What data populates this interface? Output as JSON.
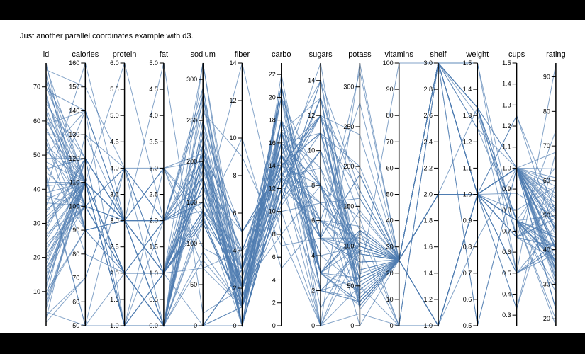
{
  "page": {
    "caption": "Just another parallel coordinates example with d3."
  },
  "colors": {
    "line": "#4f7cb0",
    "axis": "#000000",
    "background": "#ffffff",
    "letterbox": "#000000"
  },
  "chart_data": {
    "type": "parallel-coordinates",
    "title": "",
    "dimensions": [
      {
        "name": "id",
        "domain": [
          0,
          77
        ],
        "ticks": [
          10,
          20,
          30,
          40,
          50,
          60,
          70
        ]
      },
      {
        "name": "calories",
        "domain": [
          50,
          160
        ],
        "ticks": [
          50,
          60,
          70,
          80,
          90,
          100,
          110,
          120,
          130,
          140,
          150,
          160
        ]
      },
      {
        "name": "protein",
        "domain": [
          1,
          6
        ],
        "ticks": [
          1.0,
          1.5,
          2.0,
          2.5,
          3.0,
          3.5,
          4.0,
          4.5,
          5.0,
          5.5,
          6.0
        ]
      },
      {
        "name": "fat",
        "domain": [
          0,
          5
        ],
        "ticks": [
          0.0,
          0.5,
          1.0,
          1.5,
          2.0,
          2.5,
          3.0,
          3.5,
          4.0,
          4.5,
          5.0
        ]
      },
      {
        "name": "sodium",
        "domain": [
          0,
          320
        ],
        "ticks": [
          0,
          50,
          100,
          150,
          200,
          250,
          300
        ]
      },
      {
        "name": "fiber",
        "domain": [
          0,
          14
        ],
        "ticks": [
          0,
          2,
          4,
          6,
          8,
          10,
          12,
          14
        ]
      },
      {
        "name": "carbo",
        "domain": [
          0,
          23
        ],
        "ticks": [
          0,
          2,
          4,
          6,
          8,
          10,
          12,
          14,
          16,
          18,
          20,
          22
        ]
      },
      {
        "name": "sugars",
        "domain": [
          0,
          15
        ],
        "ticks": [
          0,
          2,
          4,
          6,
          8,
          10,
          12,
          14
        ]
      },
      {
        "name": "potass",
        "domain": [
          0,
          330
        ],
        "ticks": [
          0,
          50,
          100,
          150,
          200,
          250,
          300
        ]
      },
      {
        "name": "vitamins",
        "domain": [
          0,
          100
        ],
        "ticks": [
          0,
          10,
          20,
          30,
          40,
          50,
          60,
          70,
          80,
          90,
          100
        ]
      },
      {
        "name": "shelf",
        "domain": [
          1,
          3
        ],
        "ticks": [
          1.0,
          1.2,
          1.4,
          1.6,
          1.8,
          2.0,
          2.2,
          2.4,
          2.6,
          2.8,
          3.0
        ]
      },
      {
        "name": "weight",
        "domain": [
          0.5,
          1.5
        ],
        "ticks": [
          0.5,
          0.6,
          0.7,
          0.8,
          0.9,
          1.0,
          1.1,
          1.2,
          1.3,
          1.4,
          1.5
        ]
      },
      {
        "name": "cups",
        "domain": [
          0.25,
          1.5
        ],
        "ticks": [
          0.3,
          0.4,
          0.5,
          0.6,
          0.7,
          0.8,
          0.9,
          1.0,
          1.1,
          1.2,
          1.3,
          1.4,
          1.5
        ]
      },
      {
        "name": "rating",
        "domain": [
          18,
          94
        ],
        "ticks": [
          20,
          30,
          40,
          50,
          60,
          70,
          80,
          90
        ]
      }
    ],
    "records": [
      [
        1,
        70,
        4,
        1,
        130,
        10,
        5,
        6,
        280,
        25,
        3,
        1,
        0.33,
        68.4
      ],
      [
        2,
        120,
        3,
        5,
        15,
        2,
        8,
        8,
        135,
        0,
        3,
        1,
        1,
        34
      ],
      [
        3,
        70,
        4,
        1,
        260,
        9,
        7,
        5,
        320,
        25,
        3,
        1,
        0.33,
        59.4
      ],
      [
        4,
        50,
        4,
        0,
        140,
        14,
        8,
        0,
        330,
        25,
        3,
        1,
        0.5,
        93.7
      ],
      [
        5,
        110,
        2,
        2,
        200,
        1,
        14,
        8,
        0,
        25,
        3,
        1,
        0.75,
        34.4
      ],
      [
        6,
        110,
        2,
        2,
        180,
        1.5,
        10.5,
        10,
        70,
        25,
        1,
        1,
        0.75,
        29.5
      ],
      [
        7,
        110,
        2,
        0,
        125,
        1,
        11,
        14,
        30,
        25,
        2,
        1,
        1,
        33.2
      ],
      [
        8,
        130,
        3,
        2,
        210,
        2,
        18,
        8,
        100,
        25,
        3,
        1.33,
        0.75,
        37
      ],
      [
        9,
        90,
        2,
        1,
        200,
        4,
        15,
        6,
        125,
        25,
        1,
        1,
        0.67,
        49.1
      ],
      [
        10,
        90,
        3,
        0,
        210,
        5,
        13,
        5,
        190,
        25,
        3,
        1,
        0.67,
        53.3
      ],
      [
        11,
        120,
        1,
        2,
        220,
        0,
        12,
        12,
        35,
        25,
        2,
        1,
        0.75,
        18
      ],
      [
        12,
        110,
        6,
        2,
        290,
        2,
        17,
        1,
        105,
        25,
        1,
        1,
        1.25,
        50.8
      ],
      [
        13,
        120,
        1,
        3,
        210,
        0,
        13,
        9,
        45,
        25,
        2,
        1,
        0.75,
        19.8
      ],
      [
        14,
        110,
        3,
        2,
        140,
        2,
        13,
        7,
        105,
        25,
        3,
        1,
        1,
        40.4
      ],
      [
        15,
        110,
        1,
        1,
        180,
        0,
        12,
        13,
        55,
        25,
        2,
        1,
        1,
        22.7
      ],
      [
        16,
        110,
        2,
        0,
        280,
        0,
        22,
        3,
        25,
        25,
        1,
        1,
        1,
        41.4
      ],
      [
        17,
        100,
        2,
        0,
        290,
        1,
        21,
        2,
        35,
        25,
        1,
        1,
        1,
        45.9
      ],
      [
        18,
        110,
        1,
        0,
        90,
        1,
        13,
        12,
        20,
        25,
        2,
        1,
        1,
        31.4
      ],
      [
        19,
        110,
        1,
        1,
        180,
        0,
        12,
        13,
        65,
        25,
        2,
        1,
        1,
        29.9
      ],
      [
        20,
        110,
        3,
        3,
        140,
        4,
        10,
        7,
        160,
        25,
        3,
        1,
        0.5,
        40.4
      ],
      [
        21,
        100,
        3,
        0,
        80,
        1,
        21,
        2,
        60,
        25,
        3,
        1,
        0.75,
        64
      ],
      [
        22,
        110,
        2,
        0,
        220,
        1,
        21,
        3,
        30,
        25,
        3,
        1,
        1,
        46.9
      ],
      [
        23,
        100,
        2,
        1,
        140,
        2,
        11,
        10,
        120,
        25,
        3,
        1,
        0.75,
        36.2
      ],
      [
        24,
        100,
        2,
        0,
        190,
        1,
        18,
        5,
        80,
        25,
        3,
        1,
        0.75,
        44.3
      ],
      [
        25,
        110,
        1,
        1,
        125,
        1,
        11,
        13,
        30,
        25,
        2,
        1,
        1,
        32.2
      ],
      [
        26,
        110,
        1,
        0,
        200,
        1,
        14,
        11,
        25,
        25,
        1,
        1,
        1,
        31.1
      ],
      [
        27,
        100,
        3,
        0,
        0,
        3,
        14,
        7,
        100,
        25,
        2,
        1,
        0.8,
        58.3
      ],
      [
        28,
        120,
        3,
        0,
        240,
        5,
        14,
        12,
        190,
        25,
        3,
        1.33,
        0.67,
        40.9
      ],
      [
        29,
        120,
        3,
        1,
        170,
        5,
        14,
        11,
        200,
        25,
        3,
        1.33,
        0.67,
        41
      ],
      [
        30,
        110,
        3,
        0,
        250,
        3.5,
        14.5,
        3,
        145,
        25,
        3,
        1,
        0.67,
        49.1
      ],
      [
        31,
        110,
        2,
        1,
        180,
        0,
        17,
        5,
        35,
        25,
        1,
        1,
        1,
        45.8
      ],
      [
        32,
        110,
        2,
        1,
        170,
        1,
        17,
        6,
        60,
        100,
        3,
        1,
        1,
        51.6
      ],
      [
        33,
        120,
        3,
        2,
        160,
        1.5,
        14,
        11,
        80,
        25,
        3,
        1.33,
        0.5,
        42
      ],
      [
        34,
        110,
        1,
        1,
        180,
        0,
        12,
        13,
        55,
        25,
        2,
        1,
        1,
        22.7
      ],
      [
        35,
        140,
        3,
        2,
        150,
        2.5,
        20,
        8,
        90,
        25,
        3,
        1.3,
        0.75,
        40.5
      ],
      [
        36,
        100,
        2,
        0,
        220,
        2,
        15,
        6,
        90,
        25,
        3,
        1,
        1,
        50.3
      ],
      [
        37,
        110,
        1,
        1,
        135,
        0,
        13,
        12,
        25,
        25,
        2,
        1,
        0.75,
        27.8
      ],
      [
        38,
        100,
        2,
        0,
        0,
        3,
        12,
        2,
        95,
        25,
        1,
        1,
        1,
        54.8
      ],
      [
        39,
        110,
        2,
        0,
        130,
        1,
        12,
        8,
        25,
        25,
        3,
        1,
        1,
        34.3
      ],
      [
        40,
        160,
        3,
        2,
        150,
        3,
        17,
        13,
        160,
        25,
        3,
        1.5,
        0.67,
        37.1
      ],
      [
        41,
        110,
        3,
        1,
        200,
        2,
        17,
        3,
        120,
        25,
        1,
        1,
        1,
        48.6
      ],
      [
        42,
        110,
        1,
        0,
        240,
        0,
        21,
        2,
        30,
        25,
        1,
        1,
        1.25,
        44.5
      ],
      [
        43,
        50,
        1,
        0,
        0,
        0,
        13,
        0,
        15,
        0,
        3,
        0.5,
        1,
        60.8
      ],
      [
        44,
        50,
        2,
        0,
        0,
        1,
        10,
        0,
        50,
        0,
        3,
        0.5,
        1,
        63.4
      ],
      [
        45,
        100,
        4,
        2,
        150,
        2,
        12,
        6,
        95,
        25,
        2,
        1,
        1,
        46.2
      ],
      [
        46,
        120,
        3,
        3,
        130,
        2.5,
        16,
        8,
        100,
        25,
        3,
        1.25,
        0.75,
        37.1
      ],
      [
        47,
        90,
        3,
        0,
        0,
        3,
        20,
        0,
        120,
        0,
        1,
        1,
        0.67,
        74.5
      ],
      [
        48,
        110,
        2,
        1,
        125,
        1,
        11,
        10,
        50,
        25,
        1,
        1,
        1,
        45.8
      ],
      [
        49,
        120,
        3,
        1,
        210,
        5,
        14,
        12,
        240,
        25,
        2,
        1.33,
        0.75,
        39.3
      ],
      [
        50,
        140,
        3,
        1,
        190,
        4,
        15,
        14,
        170,
        25,
        3,
        1.33,
        1,
        40.6
      ],
      [
        51,
        110,
        3,
        0,
        250,
        1.5,
        13.5,
        5,
        90,
        25,
        3,
        1,
        0.75,
        43.4
      ],
      [
        52,
        100,
        3,
        1,
        200,
        2,
        16,
        3,
        120,
        25,
        3,
        1,
        1,
        44.3
      ],
      [
        53,
        110,
        3,
        0,
        330,
        2,
        21,
        5,
        80,
        25,
        3,
        1,
        0.88,
        49.1
      ],
      [
        54,
        80,
        2,
        0,
        0,
        3,
        16,
        0,
        95,
        0,
        1,
        0.83,
        1,
        68.2
      ],
      [
        55,
        90,
        3,
        1,
        170,
        3,
        18,
        2,
        90,
        25,
        3,
        1,
        1,
        58.3
      ],
      [
        56,
        130,
        4,
        2,
        270,
        2,
        16,
        8,
        60,
        25,
        3,
        1.33,
        1,
        35.8
      ],
      [
        57,
        110,
        2,
        1,
        0,
        1,
        15,
        12,
        40,
        25,
        2,
        1,
        1,
        33.9
      ],
      [
        58,
        100,
        4,
        2,
        280,
        3,
        15,
        6,
        110,
        25,
        3,
        1,
        1,
        56.3
      ],
      [
        59,
        140,
        1,
        1,
        230,
        0,
        13,
        16,
        35,
        25,
        2,
        1,
        1,
        22.6
      ],
      [
        60,
        110,
        2,
        1,
        70,
        1,
        20,
        3,
        45,
        25,
        3,
        1,
        0.75,
        49.8
      ],
      [
        61,
        100,
        4,
        1,
        320,
        1,
        16,
        8,
        60,
        25,
        3,
        1,
        0.5,
        40.5
      ],
      [
        62,
        110,
        1,
        0,
        200,
        0,
        18,
        3,
        30,
        25,
        2,
        1,
        1,
        40.1
      ],
      [
        63,
        90,
        3,
        0,
        210,
        5,
        13,
        5,
        190,
        25,
        3,
        1,
        0.5,
        47.1
      ],
      [
        64,
        100,
        2,
        2,
        160,
        2,
        15,
        4,
        50,
        25,
        3,
        1,
        0.75,
        43.6
      ],
      [
        65,
        120,
        3,
        1,
        140,
        3,
        14,
        12,
        140,
        25,
        3,
        1.33,
        0.75,
        40.9
      ],
      [
        66,
        110,
        1,
        0,
        220,
        0,
        21,
        2,
        30,
        25,
        2,
        1,
        1,
        41.5
      ],
      [
        67,
        100,
        2,
        1,
        140,
        2,
        12,
        11,
        90,
        25,
        3,
        1,
        0.75,
        36.6
      ],
      [
        68,
        90,
        2,
        1,
        180,
        1,
        15,
        4,
        100,
        25,
        3,
        1,
        1,
        53.4
      ],
      [
        69,
        140,
        3,
        3,
        200,
        2,
        18,
        5,
        110,
        25,
        3,
        1.5,
        0.5,
        38.8
      ],
      [
        70,
        110,
        2,
        1,
        130,
        1,
        11,
        14,
        70,
        25,
        2,
        1,
        1,
        35.3
      ],
      [
        71,
        120,
        3,
        2,
        180,
        2,
        17,
        9,
        100,
        25,
        3,
        1.25,
        1,
        40
      ],
      [
        72,
        100,
        3,
        1,
        140,
        2,
        15,
        3,
        120,
        25,
        3,
        1,
        1,
        50.8
      ],
      [
        73,
        110,
        3,
        1,
        230,
        3,
        17,
        3,
        115,
        25,
        1,
        1,
        0.67,
        52.1
      ],
      [
        74,
        90,
        3,
        3,
        70,
        4,
        16,
        3,
        100,
        25,
        3,
        1,
        1,
        55.3
      ],
      [
        75,
        150,
        4,
        3,
        95,
        3,
        16,
        11,
        170,
        25,
        3,
        1,
        1,
        37.1
      ],
      [
        76,
        110,
        2,
        2,
        280,
        1,
        18,
        3,
        60,
        25,
        3,
        1,
        1,
        52.3
      ],
      [
        77,
        90,
        3,
        2,
        200,
        3,
        20,
        5,
        100,
        25,
        3,
        1,
        1,
        59.6
      ]
    ]
  }
}
